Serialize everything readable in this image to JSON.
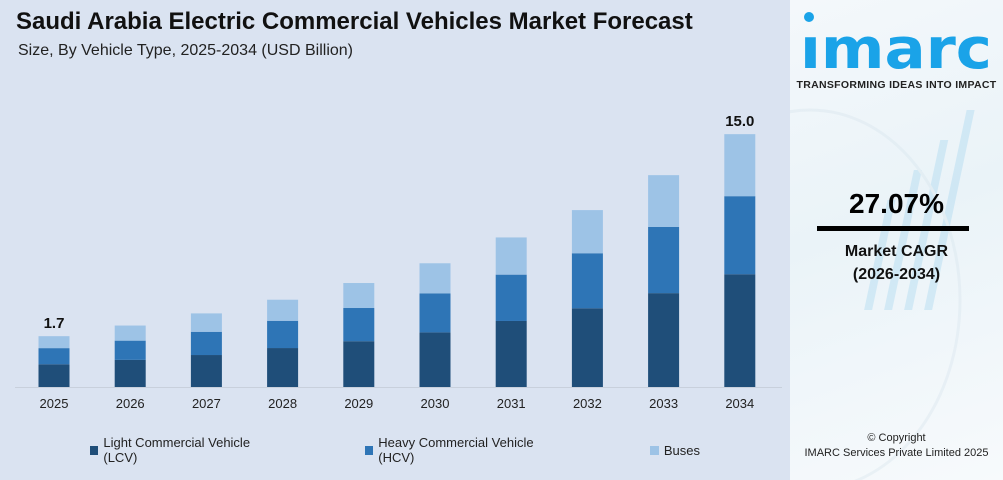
{
  "header": {
    "title": "Saudi Arabia Electric Commercial Vehicles Market Forecast",
    "subtitle": "Size, By Vehicle Type, 2025-2034 (USD Billion)"
  },
  "chart_data": {
    "type": "bar",
    "stacked": true,
    "title": "Saudi Arabia Electric Commercial Vehicles Market Forecast",
    "subtitle": "Size, By Vehicle Type, 2025-2034 (USD Billion)",
    "categories": [
      "2025",
      "2026",
      "2027",
      "2028",
      "2029",
      "2030",
      "2031",
      "2032",
      "2033",
      "2034"
    ],
    "series": [
      {
        "name": "Light Commercial Vehicle (LCV)",
        "color": "#1f4e79",
        "values": [
          0.76,
          1.06,
          1.39,
          1.83,
          2.29,
          2.87,
          3.62,
          4.45,
          5.45,
          6.69
        ]
      },
      {
        "name": "Heavy Commercial Vehicle (HCV)",
        "color": "#2e75b6",
        "values": [
          0.54,
          0.75,
          1.01,
          1.28,
          1.66,
          2.05,
          2.54,
          3.11,
          3.84,
          4.63
        ]
      },
      {
        "name": "Buses",
        "color": "#9dc3e6",
        "values": [
          0.4,
          0.59,
          0.8,
          0.99,
          1.25,
          1.58,
          2.04,
          2.44,
          3.01,
          3.68
        ]
      }
    ],
    "totals": [
      1.7,
      2.4,
      3.2,
      4.1,
      5.2,
      6.5,
      8.2,
      10.0,
      12.3,
      15.0
    ],
    "data_labels": {
      "2025": "1.7",
      "2034": "15.0"
    },
    "grid": false,
    "legend_position": "bottom",
    "xlabel": "",
    "ylabel": ""
  },
  "sidebar": {
    "brand": "imarc",
    "tagline": "TRANSFORMING IDEAS INTO IMPACT",
    "cagr_value": "27.07%",
    "cagr_label": "Market CAGR",
    "cagr_period": "(2026-2034)",
    "copyright": "© Copyright",
    "company": "IMARC Services Private Limited 2025",
    "brand_color": "#1aa3e8"
  }
}
